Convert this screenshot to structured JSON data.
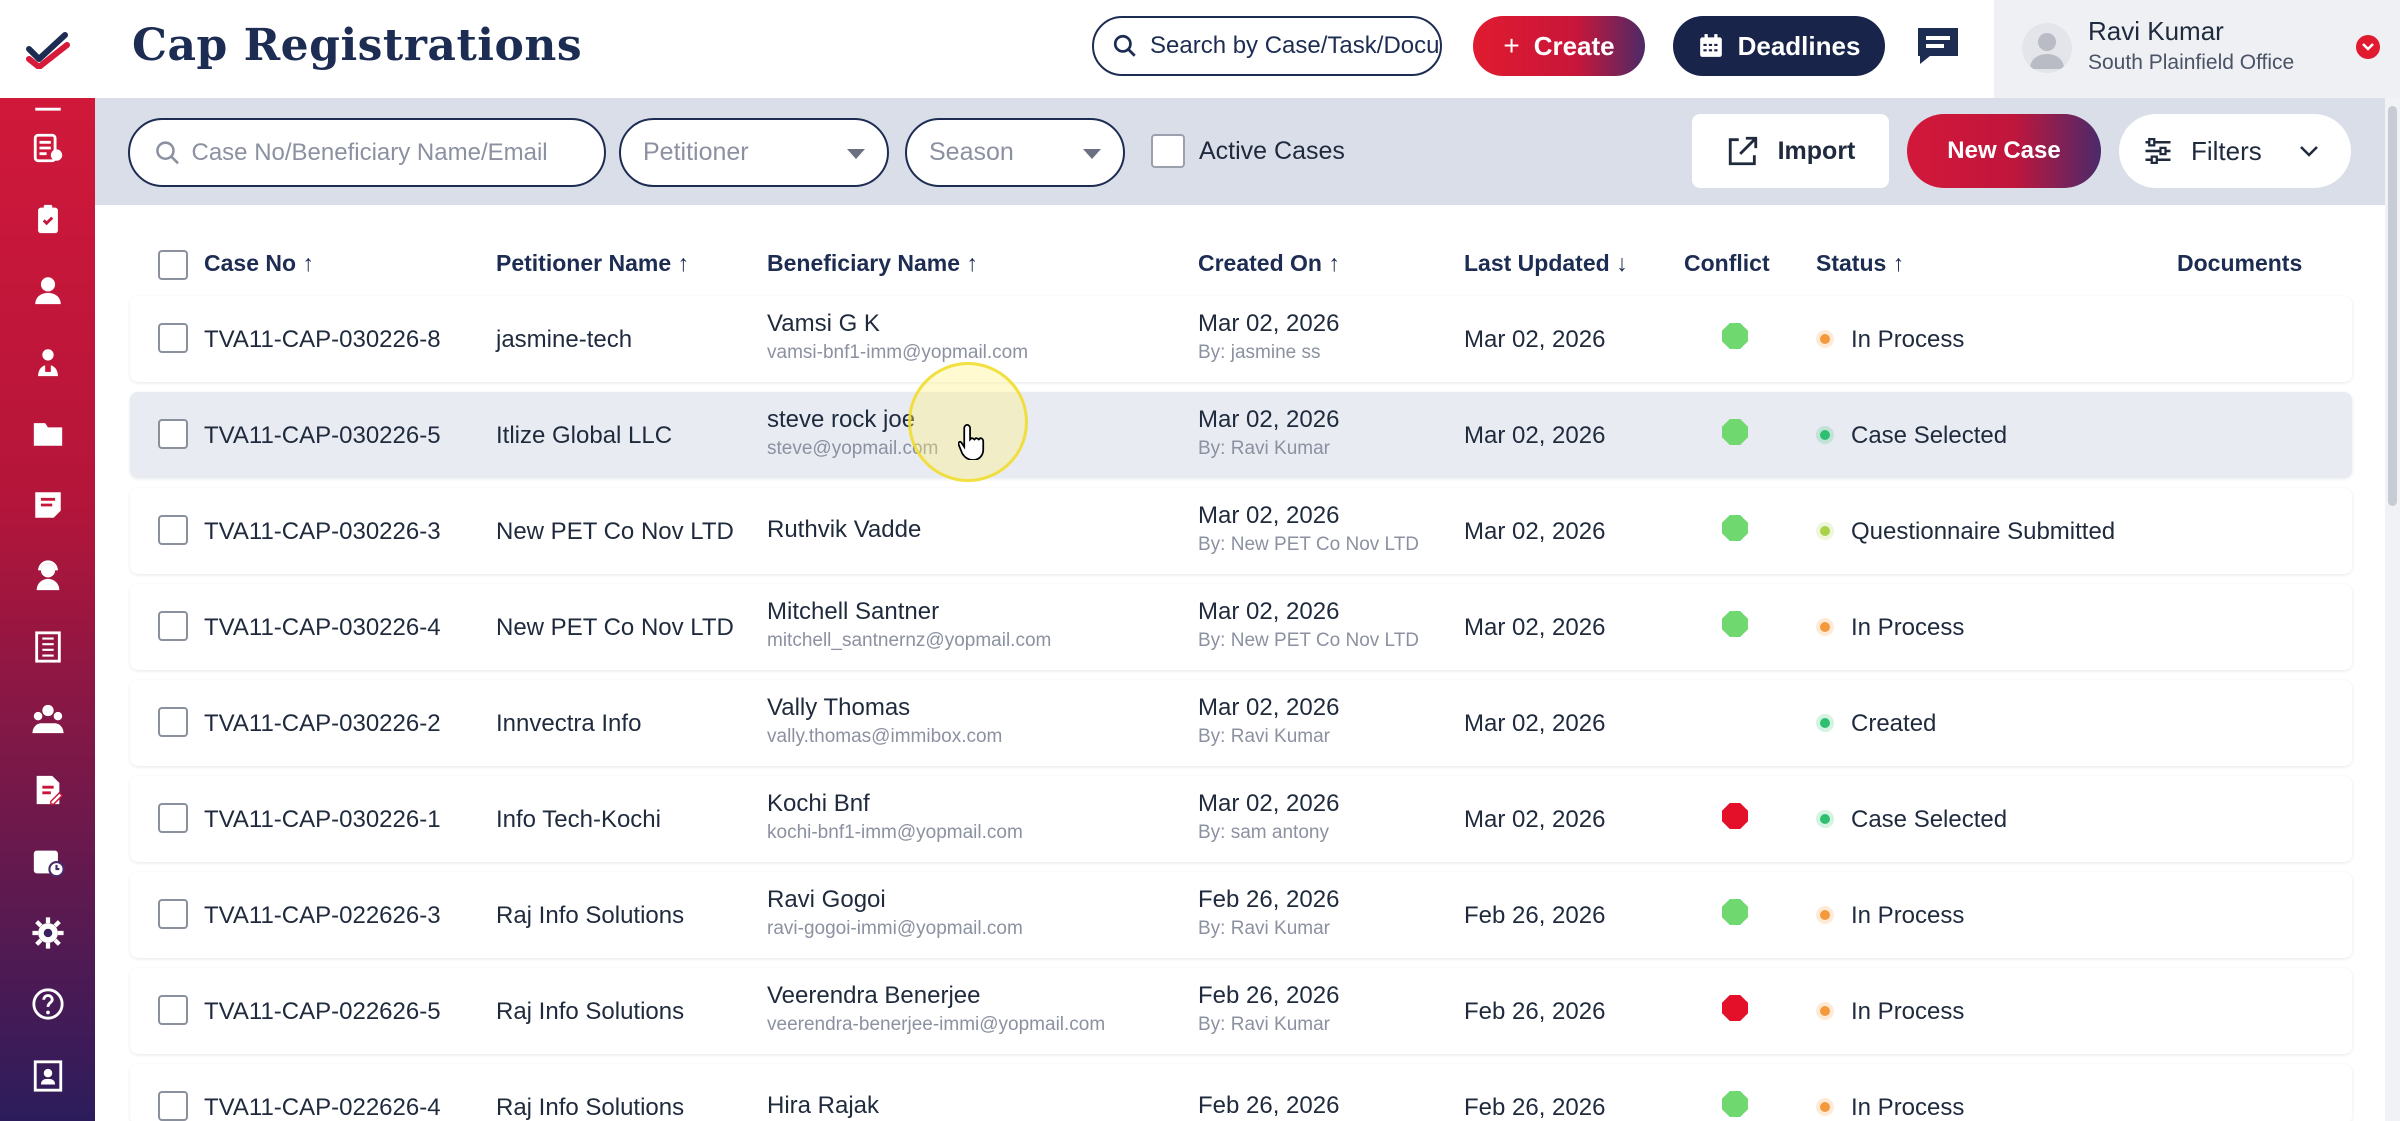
{
  "app": {
    "title": "Cap Registrations"
  },
  "header": {
    "search_placeholder": "Search by Case/Task/Document",
    "create_label": "Create",
    "deadlines_label": "Deadlines",
    "user": {
      "name": "Ravi Kumar",
      "office": "South Plainfield Office"
    }
  },
  "sidebar": {
    "items": [
      "edit-icon",
      "case-list-icon",
      "clipboard-icon",
      "person-icon",
      "people-icon",
      "folder-icon",
      "note-icon",
      "support-person-icon",
      "book-icon",
      "team-icon",
      "document-edit-icon",
      "calendar-clock-icon",
      "gear-icon",
      "help-icon",
      "contact-book-icon"
    ]
  },
  "toolbar": {
    "search_placeholder": "Case No/Beneficiary Name/Email",
    "petitioner_placeholder": "Petitioner",
    "season_placeholder": "Season",
    "active_cases_label": "Active Cases",
    "import_label": "Import",
    "new_case_label": "New Case",
    "filters_label": "Filters"
  },
  "table": {
    "columns": {
      "case_no": "Case No ↑",
      "petitioner": "Petitioner Name ↑",
      "beneficiary": "Beneficiary Name ↑",
      "created_on": "Created On ↑",
      "last_updated": "Last Updated ↓",
      "conflict": "Conflict",
      "status": "Status ↑",
      "documents": "Documents"
    },
    "rows": [
      {
        "case_no": "TVA11-CAP-030226-8",
        "petitioner": "jasmine-tech",
        "beneficiary": "Vamsi G K",
        "email": "vamsi-bnf1-imm@yopmail.com",
        "created": "Mar 02, 2026",
        "by": "By: jasmine ss",
        "updated": "Mar 02, 2026",
        "conflict": "green",
        "status": "In Process",
        "status_color": "orange"
      },
      {
        "case_no": "TVA11-CAP-030226-5",
        "petitioner": "Itlize Global LLC",
        "beneficiary": "steve rock joe",
        "email": "steve@yopmail.com",
        "created": "Mar 02, 2026",
        "by": "By: Ravi Kumar",
        "updated": "Mar 02, 2026",
        "conflict": "green",
        "status": "Case Selected",
        "status_color": "green"
      },
      {
        "case_no": "TVA11-CAP-030226-3",
        "petitioner": "New PET Co Nov LTD",
        "beneficiary": "Ruthvik Vadde",
        "email": "",
        "created": "Mar 02, 2026",
        "by": "By: New PET Co Nov LTD",
        "updated": "Mar 02, 2026",
        "conflict": "green",
        "status": "Questionnaire Submitted",
        "status_color": "lime"
      },
      {
        "case_no": "TVA11-CAP-030226-4",
        "petitioner": "New PET Co Nov LTD",
        "beneficiary": "Mitchell Santner",
        "email": "mitchell_santnernz@yopmail.com",
        "created": "Mar 02, 2026",
        "by": "By: New PET Co Nov LTD",
        "updated": "Mar 02, 2026",
        "conflict": "green",
        "status": "In Process",
        "status_color": "orange"
      },
      {
        "case_no": "TVA11-CAP-030226-2",
        "petitioner": "Innvectra Info",
        "beneficiary": "Vally Thomas",
        "email": "vally.thomas@immibox.com",
        "created": "Mar 02, 2026",
        "by": "By: Ravi Kumar",
        "updated": "Mar 02, 2026",
        "conflict": "none",
        "status": "Created",
        "status_color": "green"
      },
      {
        "case_no": "TVA11-CAP-030226-1",
        "petitioner": "Info Tech-Kochi",
        "beneficiary": "Kochi Bnf",
        "email": "kochi-bnf1-imm@yopmail.com",
        "created": "Mar 02, 2026",
        "by": "By: sam antony",
        "updated": "Mar 02, 2026",
        "conflict": "red",
        "status": "Case Selected",
        "status_color": "green"
      },
      {
        "case_no": "TVA11-CAP-022626-3",
        "petitioner": "Raj Info Solutions",
        "beneficiary": "Ravi Gogoi",
        "email": "ravi-gogoi-immi@yopmail.com",
        "created": "Feb 26, 2026",
        "by": "By: Ravi Kumar",
        "updated": "Feb 26, 2026",
        "conflict": "green",
        "status": "In Process",
        "status_color": "orange"
      },
      {
        "case_no": "TVA11-CAP-022626-5",
        "petitioner": "Raj Info Solutions",
        "beneficiary": "Veerendra Benerjee",
        "email": "veerendra-benerjee-immi@yopmail.com",
        "created": "Feb 26, 2026",
        "by": "By: Ravi Kumar",
        "updated": "Feb 26, 2026",
        "conflict": "red",
        "status": "In Process",
        "status_color": "orange"
      },
      {
        "case_no": "TVA11-CAP-022626-4",
        "petitioner": "Raj Info Solutions",
        "beneficiary": "Hira Rajak",
        "email": "",
        "created": "Feb 26, 2026",
        "by": "",
        "updated": "Feb 26, 2026",
        "conflict": "green",
        "status": "In Process",
        "status_color": "orange"
      }
    ]
  },
  "colors": {
    "green": "#6fd86f",
    "red": "#e4102a",
    "orange": "#f39a3c",
    "lime": "#a9d24a",
    "status_green": "#2fbf71"
  }
}
